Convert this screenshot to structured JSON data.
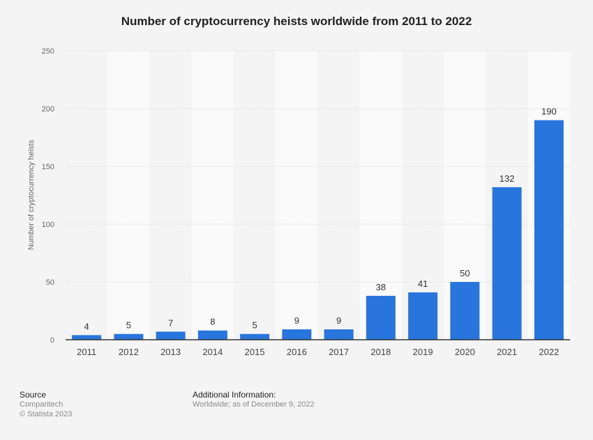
{
  "chart_data": {
    "type": "bar",
    "title": "Number of cryptocurrency heists worldwide from 2011 to 2022",
    "xlabel": "",
    "ylabel": "Number of cryptocurrency heists",
    "categories": [
      "2011",
      "2012",
      "2013",
      "2014",
      "2015",
      "2016",
      "2017",
      "2018",
      "2019",
      "2020",
      "2021",
      "2022"
    ],
    "values": [
      4,
      5,
      7,
      8,
      5,
      9,
      9,
      38,
      41,
      50,
      132,
      190
    ],
    "ylim": [
      0,
      250
    ],
    "yticks": [
      0,
      50,
      100,
      150,
      200,
      250
    ],
    "grid": true,
    "data_labels": true,
    "bar_color": "#2876dd"
  },
  "footer": {
    "source_heading": "Source",
    "source_name": "Comparitech",
    "copyright": "© Statista 2023",
    "info_heading": "Additional Information:",
    "info_text": "Worldwide; as of December 9, 2022"
  }
}
